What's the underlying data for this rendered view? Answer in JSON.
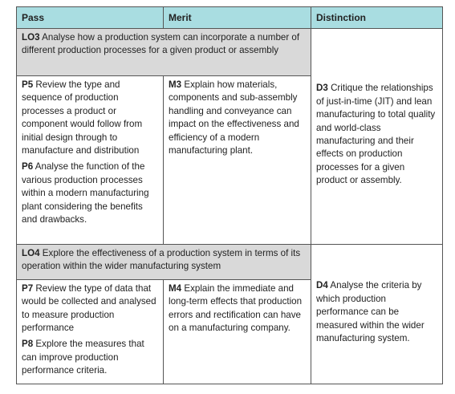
{
  "table": {
    "header": [
      "Pass",
      "Merit",
      "Distinction"
    ],
    "sections": [
      {
        "lo": {
          "code": "LO3",
          "text": "Analyse how a production system can incorporate a number of different production processes for a given product or assembly"
        },
        "pass": [
          {
            "code": "P5",
            "text": "Review the type and sequence of production processes a product or component would follow from initial design through to manufacture and distribution"
          },
          {
            "code": "P6",
            "text": "Analyse the function of the various production processes within a modern manufacturing plant considering the benefits and drawbacks."
          }
        ],
        "merit": [
          {
            "code": "M3",
            "text": "Explain how materials, components and sub-assembly handling and conveyance can impact on the effectiveness and efficiency of a modern manufacturing plant."
          }
        ],
        "distinction": [
          {
            "code": "D3",
            "text": "Critique the relationships of just-in-time (JIT) and lean manufacturing to total quality and world-class manufacturing and their effects on production processes for a given product or assembly."
          }
        ]
      },
      {
        "lo": {
          "code": "LO4",
          "text": "Explore the effectiveness of a production system in terms of its operation within the wider manufacturing system"
        },
        "pass": [
          {
            "code": "P7",
            "text": "Review the type of data that would be collected and analysed to measure production performance"
          },
          {
            "code": "P8",
            "text": "Explore the measures that can improve production performance criteria."
          }
        ],
        "merit": [
          {
            "code": "M4",
            "text": "Explain the immediate and long-term effects that production errors and rectification can have on a manufacturing company."
          }
        ],
        "distinction": [
          {
            "code": "D4",
            "text": "Analyse the criteria by which production performance can be measured within the wider manufacturing system."
          }
        ]
      }
    ]
  }
}
